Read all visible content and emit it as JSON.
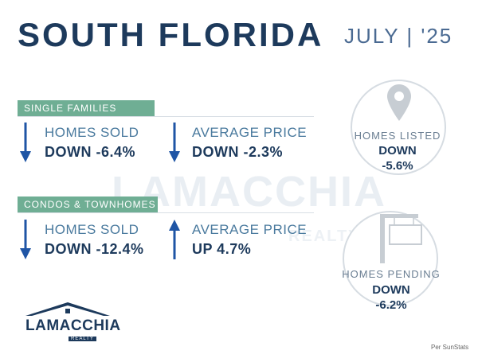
{
  "header": {
    "title": "SOUTH FLORIDA",
    "date": "JULY | '25"
  },
  "watermark": {
    "text": "LAMACCHIA",
    "sub": "REALTY"
  },
  "single_families": {
    "label": "SINGLE FAMILIES",
    "homes_sold": {
      "label": "HOMES SOLD",
      "value": "DOWN -6.4%",
      "direction": "down"
    },
    "average_price": {
      "label": "AVERAGE PRICE",
      "value": "DOWN -2.3%",
      "direction": "down"
    }
  },
  "condos": {
    "label": "CONDOS & TOWNHOMES",
    "homes_sold": {
      "label": "HOMES SOLD",
      "value": "DOWN -12.4%",
      "direction": "down"
    },
    "average_price": {
      "label": "AVERAGE PRICE",
      "value": "UP 4.7%",
      "direction": "up"
    }
  },
  "homes_listed": {
    "label": "HOMES LISTED",
    "line1": "DOWN",
    "line2": "-5.6%",
    "icon": "map-pin-icon"
  },
  "homes_pending": {
    "label": "HOMES PENDING",
    "line1": "DOWN",
    "line2": "-6.2%",
    "icon": "sign-post-icon"
  },
  "logo": {
    "text": "LAMACCHIA",
    "sub": "REALTY"
  },
  "source": "Per SunStats",
  "colors": {
    "navy": "#1d3a5c",
    "green": "#6fae94",
    "blue_arrow": "#1f55a5"
  }
}
